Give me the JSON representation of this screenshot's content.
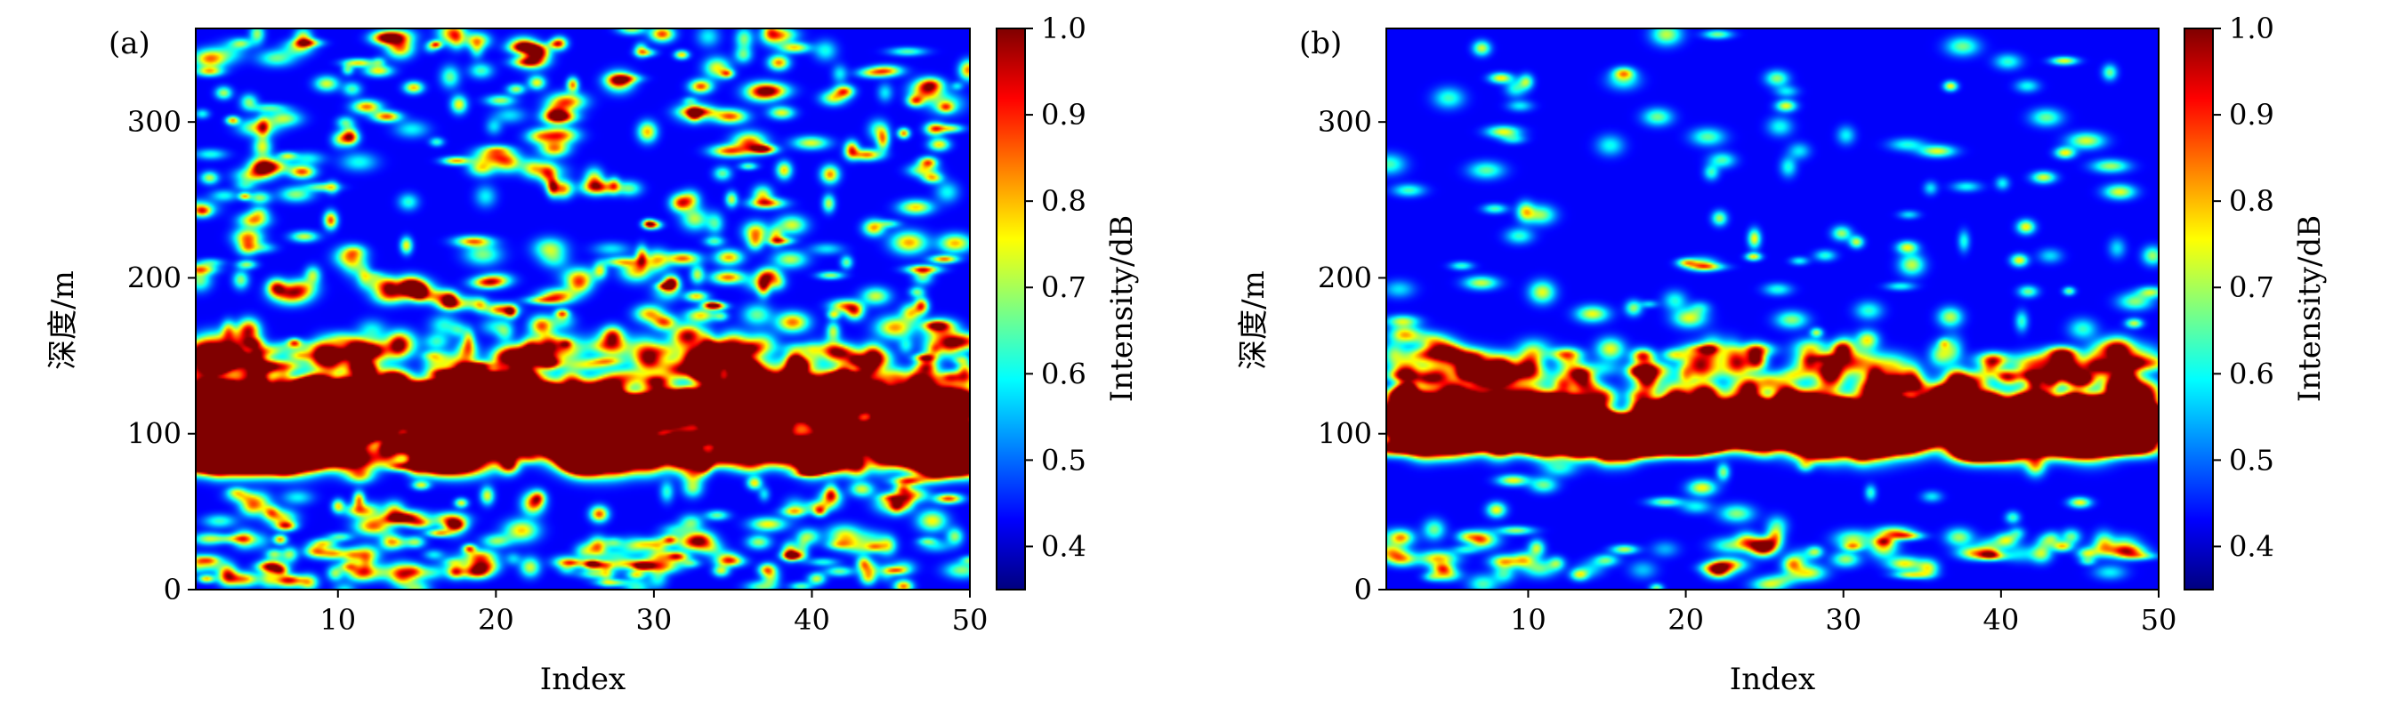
{
  "chart_data": [
    {
      "type": "heatmap",
      "panel_label": "(a)",
      "xlabel": "Index",
      "ylabel": "深度/m",
      "xlim": [
        1,
        50
      ],
      "ylim": [
        0,
        360
      ],
      "xticks": [
        10,
        20,
        30,
        40,
        50
      ],
      "yticks": [
        0,
        100,
        200,
        300
      ],
      "colorbar": {
        "label": "Intensity/dB",
        "range": [
          0.35,
          1.0
        ],
        "ticks": [
          "0.4",
          "0.5",
          "0.6",
          "0.7",
          "0.8",
          "0.9",
          "1.0"
        ],
        "tick_values": [
          0.4,
          0.5,
          0.6,
          0.7,
          0.8,
          0.9,
          1.0
        ],
        "colormap": "jet"
      },
      "description_profile": {
        "strong_band_depth_m": [
          80,
          130
        ],
        "strong_band_peak": 0.97,
        "secondary_band_depth_m": [
          130,
          160
        ],
        "scattered_speckle_level": "high",
        "background": 0.35
      }
    },
    {
      "type": "heatmap",
      "panel_label": "(b)",
      "xlabel": "Index",
      "ylabel": "深度/m",
      "xlim": [
        1,
        50
      ],
      "ylim": [
        0,
        360
      ],
      "xticks": [
        10,
        20,
        30,
        40,
        50
      ],
      "yticks": [
        0,
        100,
        200,
        300
      ],
      "colorbar": {
        "label": "Intensity/dB",
        "range": [
          0.35,
          1.0
        ],
        "ticks": [
          "0.4",
          "0.5",
          "0.6",
          "0.7",
          "0.8",
          "0.9",
          "1.0"
        ],
        "tick_values": [
          0.4,
          0.5,
          0.6,
          0.7,
          0.8,
          0.9,
          1.0
        ],
        "colormap": "jet"
      },
      "description_profile": {
        "strong_band_depth_m": [
          90,
          120
        ],
        "strong_band_peak": 0.98,
        "secondary_band_depth_m": [
          120,
          155
        ],
        "scattered_speckle_level": "low",
        "background": 0.35
      }
    }
  ]
}
